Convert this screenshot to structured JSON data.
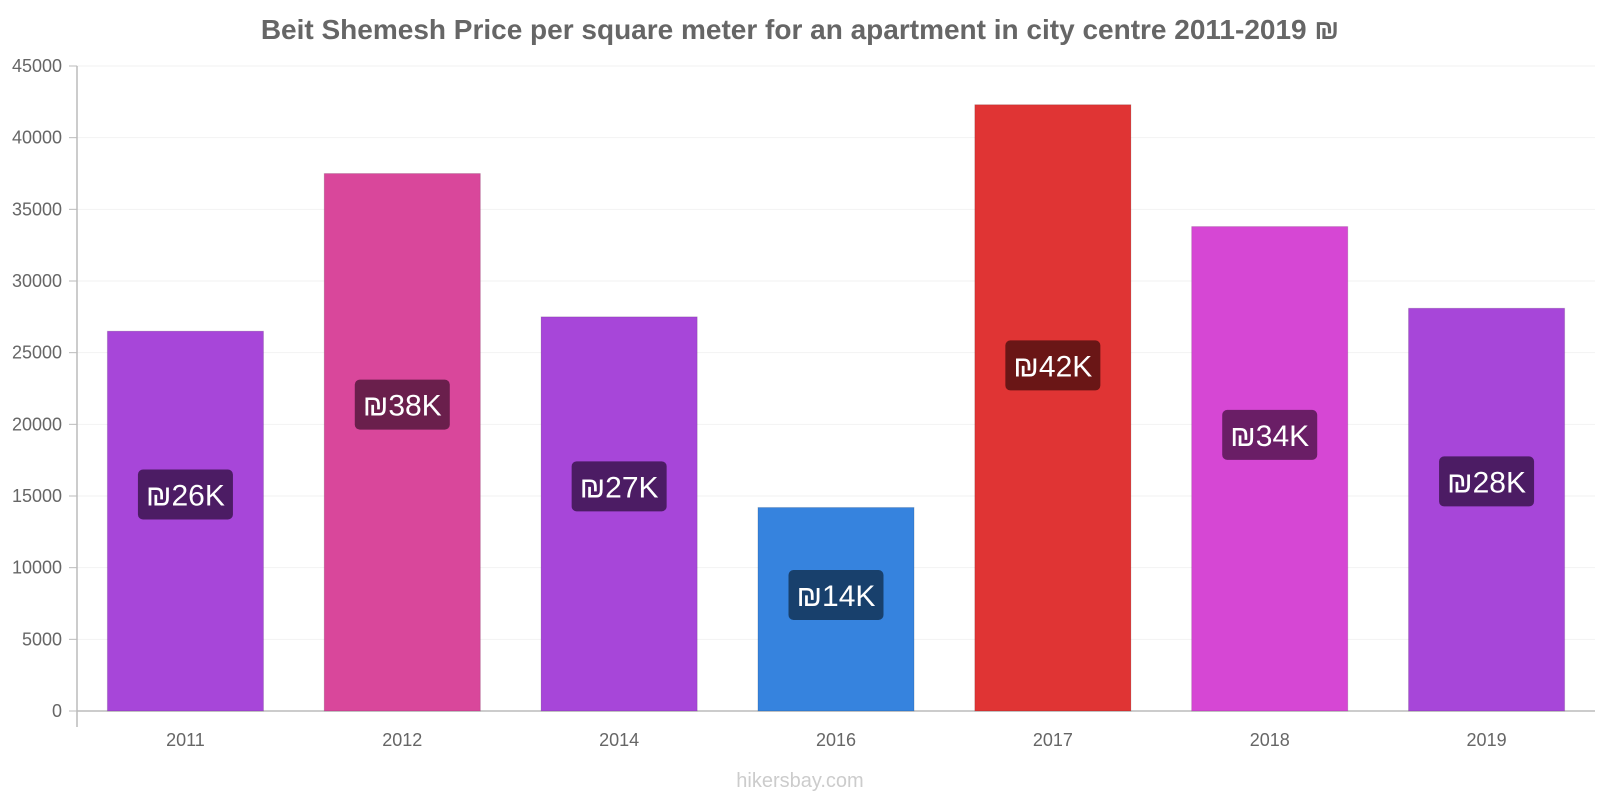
{
  "chart_data": {
    "type": "bar",
    "title": "Beit Shemesh Price per square meter for an apartment in city centre 2011-2019 ₪",
    "categories": [
      "2011",
      "2012",
      "2014",
      "2016",
      "2017",
      "2018",
      "2019"
    ],
    "values": [
      26500,
      37500,
      27500,
      14200,
      42300,
      33800,
      28100
    ],
    "data_labels": [
      "₪26K",
      "₪38K",
      "₪27K",
      "₪14K",
      "₪42K",
      "₪34K",
      "₪28K"
    ],
    "bar_colors": [
      "#a746d9",
      "#d9479b",
      "#a746d9",
      "#3683de",
      "#e03434",
      "#d647d4",
      "#a746d9"
    ],
    "label_colors": [
      "#4c1c64",
      "#6a1f4c",
      "#4c1c64",
      "#18406c",
      "#6a1616",
      "#6a1e66",
      "#4c1c64"
    ],
    "xlabel": "",
    "ylabel": "",
    "ylim": [
      0,
      45000
    ],
    "yticks": [
      0,
      5000,
      10000,
      15000,
      20000,
      25000,
      30000,
      35000,
      40000,
      45000
    ],
    "grid": true,
    "legend": "none"
  },
  "watermark": "hikersbay.com"
}
